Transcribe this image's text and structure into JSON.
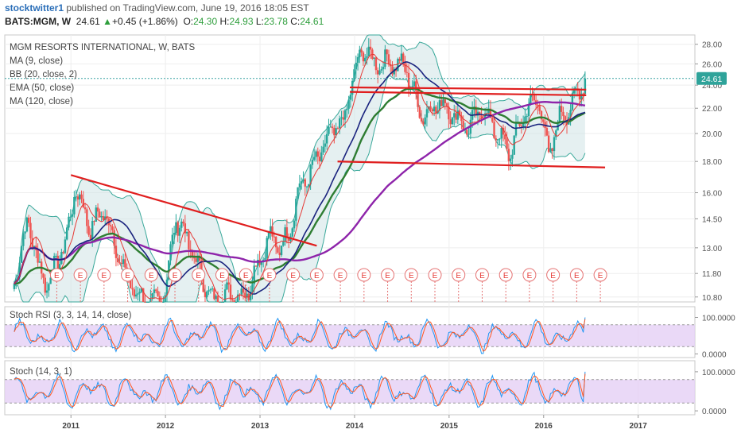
{
  "header": {
    "user": "stocktwitter1",
    "published": "published on TradingView.com, June 19, 2016 18:05 EST",
    "symbol": "BATS:MGM, W",
    "last": "24.61",
    "change": "+0.45 (+1.86%)",
    "o_label": "O:",
    "o": "24.30",
    "h_label": "H:",
    "h": "24.93",
    "l_label": "L:",
    "l": "23.78",
    "c_label": "C:",
    "c": "24.61"
  },
  "legend": {
    "title": "MGM RESORTS INTERNATIONAL, W, BATS",
    "ind1": "MA (9, close)",
    "ind2": "BB (20, close, 2)",
    "ind3": "EMA (50, close)",
    "ind4": "MA (120, close)",
    "stochrsi": "Stoch RSI (3, 3, 14, 14, close)",
    "stoch": "Stoch (14, 3, 1)"
  },
  "colors": {
    "up": "#26a69a",
    "down": "#ef5350",
    "ma9": "#e53935",
    "bb": "#39a89a",
    "ema50": "#2e7d32",
    "ma120": "#1a237e",
    "purple": "#8e24aa",
    "trend": "#e01e1e",
    "band": "#cfe3e6",
    "osc_band": "#e5cff5"
  },
  "chart_data": [
    {
      "type": "candlestick",
      "title": "MGM RESORTS INTERNATIONAL, W, BATS",
      "y_ticks": [
        "10.80",
        "11.80",
        "13.00",
        "14.50",
        "16.00",
        "18.00",
        "20.00",
        "22.00",
        "24.00",
        "26.00",
        "28.00"
      ],
      "ylim": [
        10.6,
        29.0
      ],
      "scale": "log",
      "last_price": 24.61,
      "x_ticks": [
        "2011",
        "2012",
        "2013",
        "2014",
        "2015",
        "2016",
        "2017"
      ],
      "earnings_marker": "E",
      "earnings_count": 24,
      "price_path": [
        [
          2010.4,
          11.5
        ],
        [
          2010.55,
          14.5
        ],
        [
          2010.65,
          12.2
        ],
        [
          2010.75,
          11.3
        ],
        [
          2010.95,
          13.4
        ],
        [
          2011.05,
          16.3
        ],
        [
          2011.2,
          14.0
        ],
        [
          2011.35,
          15.0
        ],
        [
          2011.55,
          12.0
        ],
        [
          2011.7,
          10.9
        ],
        [
          2011.85,
          10.5
        ],
        [
          2012.0,
          11.0
        ],
        [
          2012.1,
          14.5
        ],
        [
          2012.2,
          13.8
        ],
        [
          2012.35,
          12.0
        ],
        [
          2012.5,
          10.6
        ],
        [
          2012.65,
          10.9
        ],
        [
          2012.85,
          10.9
        ],
        [
          2013.0,
          12.5
        ],
        [
          2013.1,
          13.6
        ],
        [
          2013.2,
          13.0
        ],
        [
          2013.3,
          13.6
        ],
        [
          2013.4,
          16.0
        ],
        [
          2013.55,
          17.5
        ],
        [
          2013.7,
          19.4
        ],
        [
          2013.8,
          20.5
        ],
        [
          2013.9,
          21.0
        ],
        [
          2013.95,
          23.8
        ],
        [
          2014.1,
          27.8
        ],
        [
          2014.2,
          26.0
        ],
        [
          2014.35,
          26.2
        ],
        [
          2014.45,
          26.0
        ],
        [
          2014.55,
          25.5
        ],
        [
          2014.7,
          21.5
        ],
        [
          2014.8,
          21.8
        ],
        [
          2014.9,
          22.5
        ],
        [
          2015.05,
          21.5
        ],
        [
          2015.2,
          20.4
        ],
        [
          2015.35,
          22.0
        ],
        [
          2015.45,
          20.8
        ],
        [
          2015.55,
          19.5
        ],
        [
          2015.65,
          18.6
        ],
        [
          2015.8,
          21.8
        ],
        [
          2015.95,
          22.8
        ],
        [
          2016.0,
          20.8
        ],
        [
          2016.05,
          18.2
        ],
        [
          2016.15,
          21.0
        ],
        [
          2016.3,
          22.3
        ],
        [
          2016.4,
          24.0
        ],
        [
          2016.45,
          24.61
        ]
      ],
      "trendlines": [
        {
          "from": [
            2011.0,
            17.1
          ],
          "to": [
            2013.6,
            13.1
          ]
        },
        {
          "from": [
            2013.82,
            18.0
          ],
          "to": [
            2016.65,
            17.6
          ]
        },
        {
          "from": [
            2013.95,
            23.4
          ],
          "to": [
            2016.45,
            23.1
          ]
        },
        {
          "from": [
            2013.95,
            23.8
          ],
          "to": [
            2016.45,
            23.6
          ]
        }
      ]
    },
    {
      "type": "line",
      "title": "Stoch RSI (3, 3, 14, 14, close)",
      "y_ticks": [
        "100.0000",
        "0.0000"
      ],
      "ylim": [
        -10,
        112
      ],
      "band": [
        20,
        80
      ]
    },
    {
      "type": "line",
      "title": "Stoch (14, 3, 1)",
      "y_ticks": [
        "100.0000",
        "0.0000"
      ],
      "ylim": [
        -10,
        112
      ],
      "band": [
        20,
        80
      ]
    }
  ]
}
